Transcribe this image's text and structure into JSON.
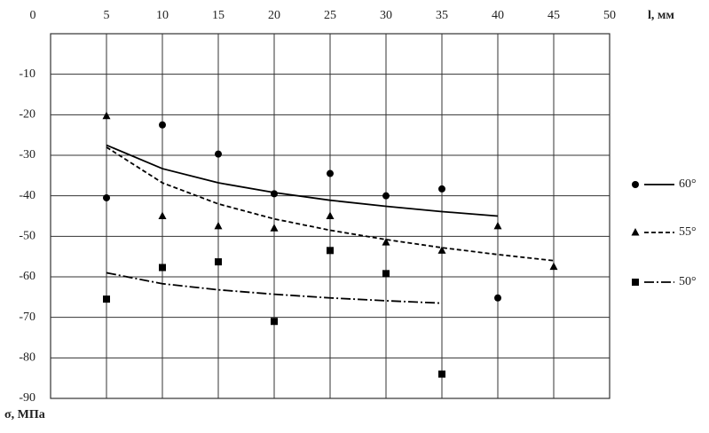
{
  "chart_data": {
    "type": "scatter",
    "x_label": "l, мм",
    "y_label": "σ, МПа",
    "xlim": [
      0,
      50
    ],
    "xticks": [
      0,
      5,
      10,
      15,
      20,
      25,
      30,
      35,
      40,
      45,
      50
    ],
    "ylim": [
      -90,
      0
    ],
    "yticks": [
      -10,
      -20,
      -30,
      -40,
      -50,
      -60,
      -70,
      -80,
      -90
    ],
    "grid": true,
    "legend": "right",
    "series": [
      {
        "name": "60°",
        "color": "#000000",
        "marker": "circle",
        "dash": "solid",
        "x": [
          5,
          10,
          15,
          20,
          25,
          30,
          35,
          40
        ],
        "values": [
          -40.5,
          -22.5,
          -29.7,
          -39.5,
          -34.5,
          -40,
          -38.3,
          -65.2
        ],
        "trend": {
          "x": [
            5,
            10,
            15,
            20,
            25,
            30,
            35,
            40
          ],
          "values": [
            -27.5,
            -33.3,
            -36.8,
            -39.2,
            -41.1,
            -42.6,
            -43.9,
            -45
          ]
        }
      },
      {
        "name": "55°",
        "color": "#000000",
        "marker": "triangle",
        "dash": "dashed",
        "x": [
          5,
          10,
          15,
          20,
          25,
          30,
          35,
          40,
          45
        ],
        "values": [
          -20.3,
          -45,
          -47.5,
          -48,
          -45,
          -51.5,
          -53.5,
          -47.5,
          -57.5
        ],
        "trend": {
          "x": [
            5,
            10,
            15,
            20,
            25,
            30,
            35,
            40,
            45
          ],
          "values": [
            -28,
            -36.8,
            -42,
            -45.7,
            -48.5,
            -50.8,
            -52.8,
            -54.5,
            -56
          ]
        }
      },
      {
        "name": "50°",
        "color": "#000000",
        "marker": "square",
        "dash": "dashdot",
        "x": [
          5,
          10,
          15,
          20,
          25,
          30,
          35
        ],
        "values": [
          -65.5,
          -57.7,
          -56.3,
          -71,
          -53.5,
          -59.2,
          -84
        ],
        "trend": {
          "x": [
            5,
            10,
            15,
            20,
            25,
            30,
            35
          ],
          "values": [
            -59,
            -61.7,
            -63.2,
            -64.3,
            -65.2,
            -65.9,
            -66.5
          ]
        }
      }
    ]
  }
}
